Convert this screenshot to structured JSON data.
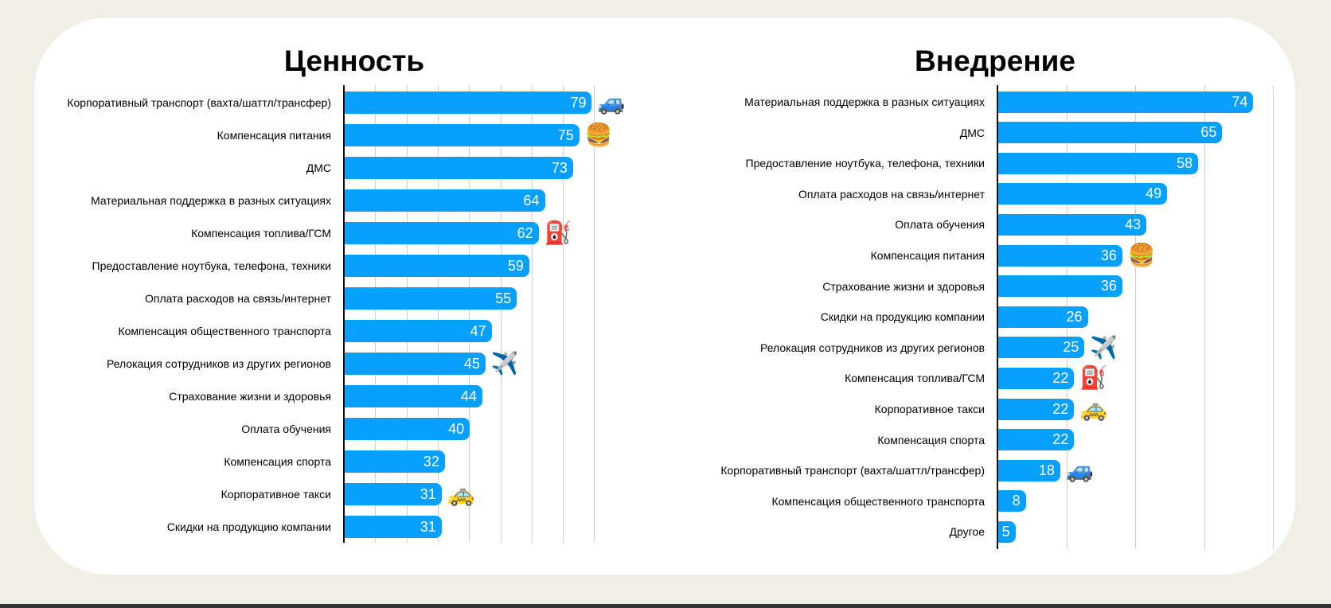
{
  "chart_data": [
    {
      "type": "bar",
      "orientation": "horizontal",
      "title": "Ценность",
      "xlim": [
        0,
        80
      ],
      "grid_step": 10,
      "grid": true,
      "categories": [
        "Корпоративный транспорт (вахта/шаттл/трансфер)",
        "Компенсация питания",
        "ДМС",
        "Материальная поддержка в разных ситуациях",
        "Компенсация топлива/ГСМ",
        "Предоставление ноутбука, телефона, техники",
        "Оплата расходов на связь/интернет",
        "Компенсация общественного транспорта",
        "Релокация сотрудников из других регионов",
        "Страхование жизни и здоровья",
        "Оплата обучения",
        "Компенсация спорта",
        "Корпоративное такси",
        "Скидки на продукцию компании"
      ],
      "values": [
        79,
        75,
        73,
        64,
        62,
        59,
        55,
        47,
        45,
        44,
        40,
        32,
        31,
        31
      ],
      "icons": [
        "car-icon",
        "burger-icon",
        "",
        "",
        "fuel-pump-icon",
        "",
        "",
        "",
        "airplane-icon",
        "",
        "",
        "",
        "taxi-icon",
        ""
      ]
    },
    {
      "type": "bar",
      "orientation": "horizontal",
      "title": "Внедрение",
      "xlim": [
        0,
        80
      ],
      "grid_step": 20,
      "grid": true,
      "categories": [
        "Материальная поддержка в разных ситуациях",
        "ДМС",
        "Предоставление ноутбука, телефона, техники",
        "Оплата расходов на связь/интернет",
        "Оплата обучения",
        "Компенсация питания",
        "Страхование жизни и здоровья",
        "Скидки на продукцию компании",
        "Релокация сотрудников из других регионов",
        "Компенсация топлива/ГСМ",
        "Корпоративное такси",
        "Компенсация спорта",
        "Корпоративный транспорт (вахта/шаттл/трансфер)",
        "Компенсация общественного транспорта",
        "Другое"
      ],
      "values": [
        74,
        65,
        58,
        49,
        43,
        36,
        36,
        26,
        25,
        22,
        22,
        22,
        18,
        8,
        5
      ],
      "icons": [
        "",
        "",
        "",
        "",
        "",
        "burger-icon",
        "",
        "",
        "airplane-icon",
        "fuel-pump-icon",
        "taxi-icon",
        "",
        "car-icon",
        "",
        ""
      ]
    }
  ],
  "colors": {
    "bar": "#07a0ff",
    "background": "#f1eee6"
  }
}
